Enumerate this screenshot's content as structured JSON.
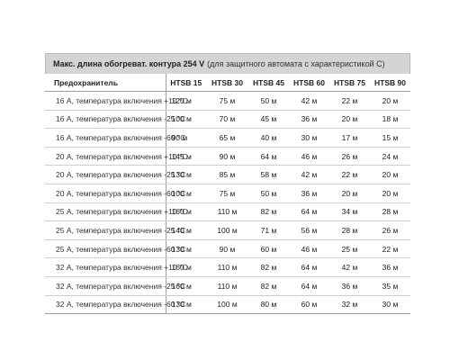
{
  "title": {
    "bold": "Макс. длина обогреват. контура 254 V",
    "rest": "(для защитного автомата с характеристикой С)"
  },
  "columns": [
    "Предохранитель",
    "HTSB 15",
    "HTSB 30",
    "HTSB 45",
    "HTSB 60",
    "HTSB 75",
    "HTSB 90"
  ],
  "rows": [
    {
      "fuse": "16 А, температура включения +10 °С",
      "values": [
        "120 м",
        "75 м",
        "50 м",
        "42 м",
        "22 м",
        "20 м"
      ]
    },
    {
      "fuse": "16 А, температура включения -25 °С",
      "values": [
        "100 м",
        "70 м",
        "45 м",
        "36 м",
        "20 м",
        "18 м"
      ]
    },
    {
      "fuse": "16 А, температура включения -60 °С",
      "values": [
        "90 м",
        "65 м",
        "40 м",
        "30 м",
        "17 м",
        "15 м"
      ]
    },
    {
      "fuse": "20 А, температура включения +10 °С",
      "values": [
        "145 м",
        "90 м",
        "64 м",
        "46 м",
        "26 м",
        "24 м"
      ]
    },
    {
      "fuse": "20 А, температура включения -25 °С",
      "values": [
        "130 м",
        "85 м",
        "58 м",
        "42 м",
        "22 м",
        "20 м"
      ]
    },
    {
      "fuse": "20 А, температура включения -60 °С",
      "values": [
        "100 м",
        "75 м",
        "50 м",
        "36 м",
        "20 м",
        "20 м"
      ]
    },
    {
      "fuse": "25 А, температура включения +10 °С",
      "values": [
        "160 м",
        "110 м",
        "82 м",
        "64 м",
        "34 м",
        "28 м"
      ]
    },
    {
      "fuse": "25 А, температура включения -25 °С",
      "values": [
        "140 м",
        "100 м",
        "71 м",
        "56 м",
        "28 м",
        "26 м"
      ]
    },
    {
      "fuse": "25 А, температура включения -60 °С",
      "values": [
        "130 м",
        "90 м",
        "60 м",
        "46 м",
        "25 м",
        "22 м"
      ]
    },
    {
      "fuse": "32 А, температура включения +10 °С",
      "values": [
        "160 м",
        "110 м",
        "82 м",
        "64 м",
        "42 м",
        "36 м"
      ]
    },
    {
      "fuse": "32 А, температура включения -25 °С",
      "values": [
        "160 м",
        "110 м",
        "82 м",
        "64 м",
        "36 м",
        "35 м"
      ]
    },
    {
      "fuse": "32 А, температура включения -60 °С",
      "values": [
        "130 м",
        "100 м",
        "80 м",
        "60 м",
        "32 м",
        "30 м"
      ]
    }
  ]
}
